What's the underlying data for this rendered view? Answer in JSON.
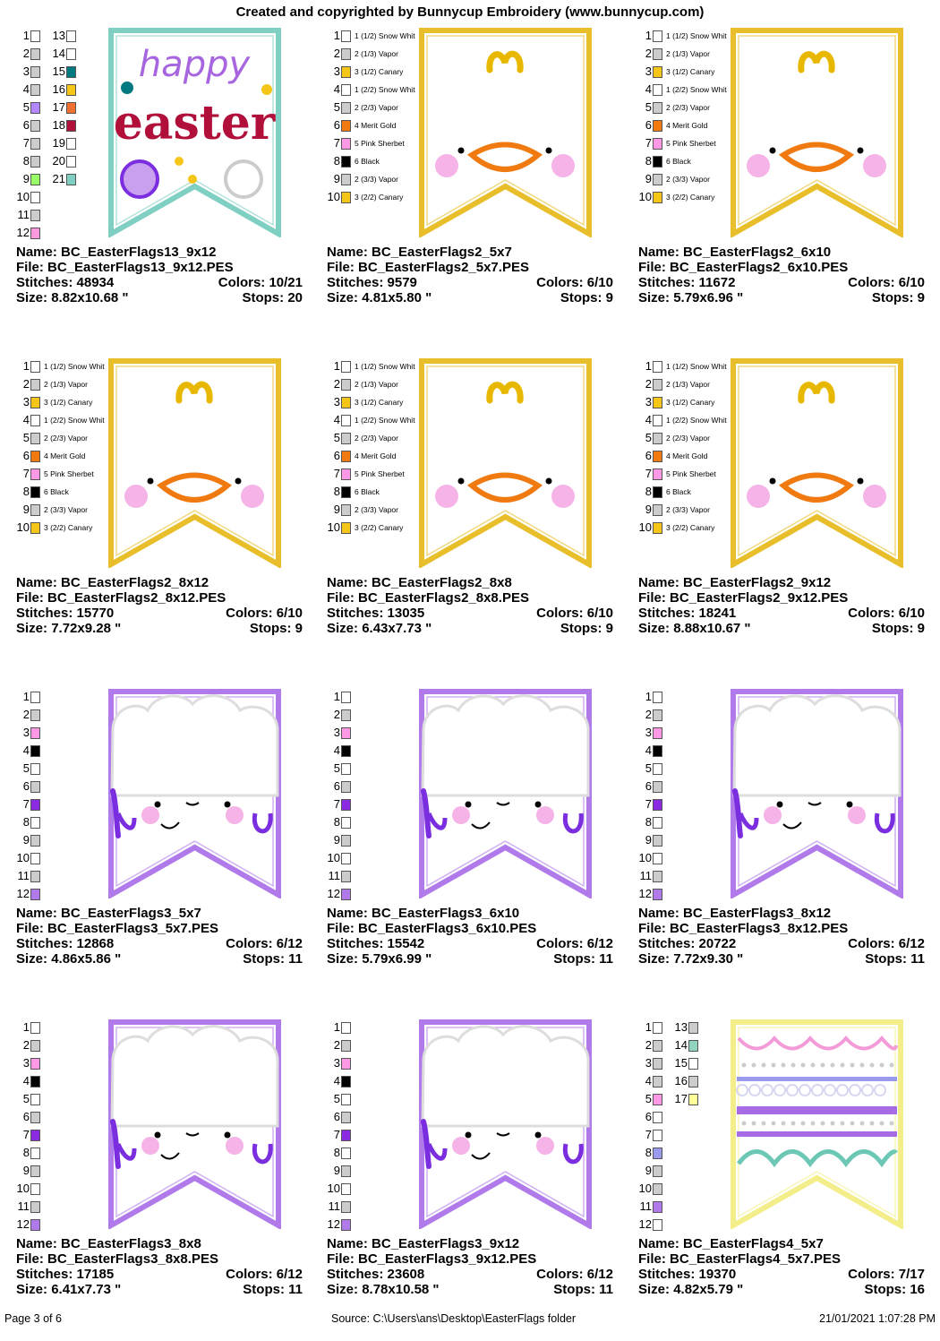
{
  "header": "Created and copyrighted by Bunnycup Embroidery (www.bunnycup.com)",
  "footer": {
    "page": "Page 3 of 6",
    "source": "Source: C:\\Users\\ans\\Desktop\\EasterFlags folder",
    "datetime": "21/01/2021 1:07:28 PM"
  },
  "labels": {
    "name": "Name:",
    "file": "File:",
    "stitches": "Stitches:",
    "colors": "Colors:",
    "size": "Size:",
    "stops": "Stops:"
  },
  "designs": [
    {
      "name": "BC_EasterFlags13_9x12",
      "file": "BC_EasterFlags13_9x12.PES",
      "stitches": "48934",
      "colors": "10/21",
      "size": "8.82x10.68 \"",
      "stops": "20",
      "type": "easter",
      "outline": "#7fcfc3",
      "art": {
        "line1": "happy",
        "line2": "easter"
      },
      "swatches": [
        {
          "n": "1",
          "c": "#ffffff"
        },
        {
          "n": "2",
          "c": "#cccccc"
        },
        {
          "n": "3",
          "c": "#cccccc"
        },
        {
          "n": "4",
          "c": "#cccccc"
        },
        {
          "n": "5",
          "c": "#b388ff"
        },
        {
          "n": "6",
          "c": "#cccccc"
        },
        {
          "n": "7",
          "c": "#cccccc"
        },
        {
          "n": "8",
          "c": "#cccccc"
        },
        {
          "n": "9",
          "c": "#99ff66"
        },
        {
          "n": "10",
          "c": "#ffffff"
        },
        {
          "n": "11",
          "c": "#cccccc"
        },
        {
          "n": "12",
          "c": "#ff99dd"
        }
      ],
      "swatches_b": [
        {
          "n": "13",
          "c": "#ffffff"
        },
        {
          "n": "14",
          "c": "#ffffff"
        },
        {
          "n": "15",
          "c": "#007a80"
        },
        {
          "n": "16",
          "c": "#f5c518"
        },
        {
          "n": "17",
          "c": "#f07030"
        },
        {
          "n": "18",
          "c": "#b0103a"
        },
        {
          "n": "19",
          "c": "#ffffff"
        },
        {
          "n": "20",
          "c": "#ffffff"
        },
        {
          "n": "21",
          "c": "#7fcfc3"
        }
      ]
    },
    {
      "name": "BC_EasterFlags2_5x7",
      "file": "BC_EasterFlags2_5x7.PES",
      "stitches": "9579",
      "colors": "6/10",
      "size": "4.81x5.80 \"",
      "stops": "9",
      "type": "chick",
      "outline": "#e8bf2a",
      "swatches": [
        {
          "n": "1",
          "c": "#ffffff",
          "l": "1 (1/2) Snow Whit"
        },
        {
          "n": "2",
          "c": "#cccccc",
          "l": "2 (1/3) Vapor"
        },
        {
          "n": "3",
          "c": "#f5c518",
          "l": "3 (1/2) Canary"
        },
        {
          "n": "4",
          "c": "#ffffff",
          "l": "1 (2/2) Snow Whit"
        },
        {
          "n": "5",
          "c": "#cccccc",
          "l": "2 (2/3) Vapor"
        },
        {
          "n": "6",
          "c": "#f07a10",
          "l": "4 Merit Gold"
        },
        {
          "n": "7",
          "c": "#ff99e6",
          "l": "5 Pink Sherbet"
        },
        {
          "n": "8",
          "c": "#000000",
          "l": "6 Black"
        },
        {
          "n": "9",
          "c": "#cccccc",
          "l": "2 (3/3) Vapor"
        },
        {
          "n": "10",
          "c": "#f5c518",
          "l": "3 (2/2) Canary"
        }
      ]
    },
    {
      "name": "BC_EasterFlags2_6x10",
      "file": "BC_EasterFlags2_6x10.PES",
      "stitches": "11672",
      "colors": "6/10",
      "size": "5.79x6.96 \"",
      "stops": "9",
      "type": "chick",
      "outline": "#e8bf2a",
      "swatches": [
        {
          "n": "1",
          "c": "#ffffff",
          "l": "1 (1/2) Snow Whit"
        },
        {
          "n": "2",
          "c": "#cccccc",
          "l": "2 (1/3) Vapor"
        },
        {
          "n": "3",
          "c": "#f5c518",
          "l": "3 (1/2) Canary"
        },
        {
          "n": "4",
          "c": "#ffffff",
          "l": "1 (2/2) Snow Whit"
        },
        {
          "n": "5",
          "c": "#cccccc",
          "l": "2 (2/3) Vapor"
        },
        {
          "n": "6",
          "c": "#f07a10",
          "l": "4 Merit Gold"
        },
        {
          "n": "7",
          "c": "#ff99e6",
          "l": "5 Pink Sherbet"
        },
        {
          "n": "8",
          "c": "#000000",
          "l": "6 Black"
        },
        {
          "n": "9",
          "c": "#cccccc",
          "l": "2 (3/3) Vapor"
        },
        {
          "n": "10",
          "c": "#f5c518",
          "l": "3 (2/2) Canary"
        }
      ]
    },
    {
      "name": "BC_EasterFlags2_8x12",
      "file": "BC_EasterFlags2_8x12.PES",
      "stitches": "15770",
      "colors": "6/10",
      "size": "7.72x9.28 \"",
      "stops": "9",
      "type": "chick",
      "outline": "#e8bf2a",
      "swatches": [
        {
          "n": "1",
          "c": "#ffffff",
          "l": "1 (1/2) Snow Whit"
        },
        {
          "n": "2",
          "c": "#cccccc",
          "l": "2 (1/3) Vapor"
        },
        {
          "n": "3",
          "c": "#f5c518",
          "l": "3 (1/2) Canary"
        },
        {
          "n": "4",
          "c": "#ffffff",
          "l": "1 (2/2) Snow Whit"
        },
        {
          "n": "5",
          "c": "#cccccc",
          "l": "2 (2/3) Vapor"
        },
        {
          "n": "6",
          "c": "#f07a10",
          "l": "4 Merit Gold"
        },
        {
          "n": "7",
          "c": "#ff99e6",
          "l": "5 Pink Sherbet"
        },
        {
          "n": "8",
          "c": "#000000",
          "l": "6 Black"
        },
        {
          "n": "9",
          "c": "#cccccc",
          "l": "2 (3/3) Vapor"
        },
        {
          "n": "10",
          "c": "#f5c518",
          "l": "3 (2/2) Canary"
        }
      ]
    },
    {
      "name": "BC_EasterFlags2_8x8",
      "file": "BC_EasterFlags2_8x8.PES",
      "stitches": "13035",
      "colors": "6/10",
      "size": "6.43x7.73 \"",
      "stops": "9",
      "type": "chick",
      "outline": "#e8bf2a",
      "swatches": [
        {
          "n": "1",
          "c": "#ffffff",
          "l": "1 (1/2) Snow Whit"
        },
        {
          "n": "2",
          "c": "#cccccc",
          "l": "2 (1/3) Vapor"
        },
        {
          "n": "3",
          "c": "#f5c518",
          "l": "3 (1/2) Canary"
        },
        {
          "n": "4",
          "c": "#ffffff",
          "l": "1 (2/2) Snow Whit"
        },
        {
          "n": "5",
          "c": "#cccccc",
          "l": "2 (2/3) Vapor"
        },
        {
          "n": "6",
          "c": "#f07a10",
          "l": "4 Merit Gold"
        },
        {
          "n": "7",
          "c": "#ff99e6",
          "l": "5 Pink Sherbet"
        },
        {
          "n": "8",
          "c": "#000000",
          "l": "6 Black"
        },
        {
          "n": "9",
          "c": "#cccccc",
          "l": "2 (3/3) Vapor"
        },
        {
          "n": "10",
          "c": "#f5c518",
          "l": "3 (2/2) Canary"
        }
      ]
    },
    {
      "name": "BC_EasterFlags2_9x12",
      "file": "BC_EasterFlags2_9x12.PES",
      "stitches": "18241",
      "colors": "6/10",
      "size": "8.88x10.67 \"",
      "stops": "9",
      "type": "chick",
      "outline": "#e8bf2a",
      "swatches": [
        {
          "n": "1",
          "c": "#ffffff",
          "l": "1 (1/2) Snow Whit"
        },
        {
          "n": "2",
          "c": "#cccccc",
          "l": "2 (1/3) Vapor"
        },
        {
          "n": "3",
          "c": "#f5c518",
          "l": "3 (1/2) Canary"
        },
        {
          "n": "4",
          "c": "#ffffff",
          "l": "1 (2/2) Snow Whit"
        },
        {
          "n": "5",
          "c": "#cccccc",
          "l": "2 (2/3) Vapor"
        },
        {
          "n": "6",
          "c": "#f07a10",
          "l": "4 Merit Gold"
        },
        {
          "n": "7",
          "c": "#ff99e6",
          "l": "5 Pink Sherbet"
        },
        {
          "n": "8",
          "c": "#000000",
          "l": "6 Black"
        },
        {
          "n": "9",
          "c": "#cccccc",
          "l": "2 (3/3) Vapor"
        },
        {
          "n": "10",
          "c": "#f5c518",
          "l": "3 (2/2) Canary"
        }
      ]
    },
    {
      "name": "BC_EasterFlags3_5x7",
      "file": "BC_EasterFlags3_5x7.PES",
      "stitches": "12868",
      "colors": "6/12",
      "size": "4.86x5.86 \"",
      "stops": "11",
      "type": "lamb",
      "outline": "#b07aea",
      "swatches": [
        {
          "n": "1",
          "c": "#ffffff"
        },
        {
          "n": "2",
          "c": "#cccccc"
        },
        {
          "n": "3",
          "c": "#ff99e6"
        },
        {
          "n": "4",
          "c": "#000000"
        },
        {
          "n": "5",
          "c": "#ffffff"
        },
        {
          "n": "6",
          "c": "#cccccc"
        },
        {
          "n": "7",
          "c": "#8a2be2"
        },
        {
          "n": "8",
          "c": "#ffffff"
        },
        {
          "n": "9",
          "c": "#cccccc"
        },
        {
          "n": "10",
          "c": "#ffffff"
        },
        {
          "n": "11",
          "c": "#cccccc"
        },
        {
          "n": "12",
          "c": "#b07aea"
        }
      ]
    },
    {
      "name": "BC_EasterFlags3_6x10",
      "file": "BC_EasterFlags3_6x10.PES",
      "stitches": "15542",
      "colors": "6/12",
      "size": "5.79x6.99 \"",
      "stops": "11",
      "type": "lamb",
      "outline": "#b07aea",
      "swatches": [
        {
          "n": "1",
          "c": "#ffffff"
        },
        {
          "n": "2",
          "c": "#cccccc"
        },
        {
          "n": "3",
          "c": "#ff99e6"
        },
        {
          "n": "4",
          "c": "#000000"
        },
        {
          "n": "5",
          "c": "#ffffff"
        },
        {
          "n": "6",
          "c": "#cccccc"
        },
        {
          "n": "7",
          "c": "#8a2be2"
        },
        {
          "n": "8",
          "c": "#ffffff"
        },
        {
          "n": "9",
          "c": "#cccccc"
        },
        {
          "n": "10",
          "c": "#ffffff"
        },
        {
          "n": "11",
          "c": "#cccccc"
        },
        {
          "n": "12",
          "c": "#b07aea"
        }
      ]
    },
    {
      "name": "BC_EasterFlags3_8x12",
      "file": "BC_EasterFlags3_8x12.PES",
      "stitches": "20722",
      "colors": "6/12",
      "size": "7.72x9.30 \"",
      "stops": "11",
      "type": "lamb",
      "outline": "#b07aea",
      "swatches": [
        {
          "n": "1",
          "c": "#ffffff"
        },
        {
          "n": "2",
          "c": "#cccccc"
        },
        {
          "n": "3",
          "c": "#ff99e6"
        },
        {
          "n": "4",
          "c": "#000000"
        },
        {
          "n": "5",
          "c": "#ffffff"
        },
        {
          "n": "6",
          "c": "#cccccc"
        },
        {
          "n": "7",
          "c": "#8a2be2"
        },
        {
          "n": "8",
          "c": "#ffffff"
        },
        {
          "n": "9",
          "c": "#cccccc"
        },
        {
          "n": "10",
          "c": "#ffffff"
        },
        {
          "n": "11",
          "c": "#cccccc"
        },
        {
          "n": "12",
          "c": "#b07aea"
        }
      ]
    },
    {
      "name": "BC_EasterFlags3_8x8",
      "file": "BC_EasterFlags3_8x8.PES",
      "stitches": "17185",
      "colors": "6/12",
      "size": "6.41x7.73 \"",
      "stops": "11",
      "type": "lamb",
      "outline": "#b07aea",
      "swatches": [
        {
          "n": "1",
          "c": "#ffffff"
        },
        {
          "n": "2",
          "c": "#cccccc"
        },
        {
          "n": "3",
          "c": "#ff99e6"
        },
        {
          "n": "4",
          "c": "#000000"
        },
        {
          "n": "5",
          "c": "#ffffff"
        },
        {
          "n": "6",
          "c": "#cccccc"
        },
        {
          "n": "7",
          "c": "#8a2be2"
        },
        {
          "n": "8",
          "c": "#ffffff"
        },
        {
          "n": "9",
          "c": "#cccccc"
        },
        {
          "n": "10",
          "c": "#ffffff"
        },
        {
          "n": "11",
          "c": "#cccccc"
        },
        {
          "n": "12",
          "c": "#b07aea"
        }
      ]
    },
    {
      "name": "BC_EasterFlags3_9x12",
      "file": "BC_EasterFlags3_9x12.PES",
      "stitches": "23608",
      "colors": "6/12",
      "size": "8.78x10.58 \"",
      "stops": "11",
      "type": "lamb",
      "outline": "#b07aea",
      "swatches": [
        {
          "n": "1",
          "c": "#ffffff"
        },
        {
          "n": "2",
          "c": "#cccccc"
        },
        {
          "n": "3",
          "c": "#ff99e6"
        },
        {
          "n": "4",
          "c": "#000000"
        },
        {
          "n": "5",
          "c": "#ffffff"
        },
        {
          "n": "6",
          "c": "#cccccc"
        },
        {
          "n": "7",
          "c": "#8a2be2"
        },
        {
          "n": "8",
          "c": "#ffffff"
        },
        {
          "n": "9",
          "c": "#cccccc"
        },
        {
          "n": "10",
          "c": "#ffffff"
        },
        {
          "n": "11",
          "c": "#cccccc"
        },
        {
          "n": "12",
          "c": "#b07aea"
        }
      ]
    },
    {
      "name": "BC_EasterFlags4_5x7",
      "file": "BC_EasterFlags4_5x7.PES",
      "stitches": "19370",
      "colors": "7/17",
      "size": "4.82x5.79 \"",
      "stops": "16",
      "type": "stripes",
      "outline": "#f3ee8a",
      "swatches": [
        {
          "n": "1",
          "c": "#ffffff"
        },
        {
          "n": "2",
          "c": "#cccccc"
        },
        {
          "n": "3",
          "c": "#cccccc"
        },
        {
          "n": "4",
          "c": "#cccccc"
        },
        {
          "n": "5",
          "c": "#ff99e6"
        },
        {
          "n": "6",
          "c": "#ffffff"
        },
        {
          "n": "7",
          "c": "#ffffff"
        },
        {
          "n": "8",
          "c": "#9999ee"
        },
        {
          "n": "9",
          "c": "#cccccc"
        },
        {
          "n": "10",
          "c": "#cccccc"
        },
        {
          "n": "11",
          "c": "#b07aea"
        },
        {
          "n": "12",
          "c": "#ffffff"
        }
      ],
      "swatches_b": [
        {
          "n": "13",
          "c": "#cccccc"
        },
        {
          "n": "14",
          "c": "#8fd3c0"
        },
        {
          "n": "15",
          "c": "#ffffff"
        },
        {
          "n": "16",
          "c": "#cccccc"
        },
        {
          "n": "17",
          "c": "#ffff99"
        }
      ]
    }
  ]
}
